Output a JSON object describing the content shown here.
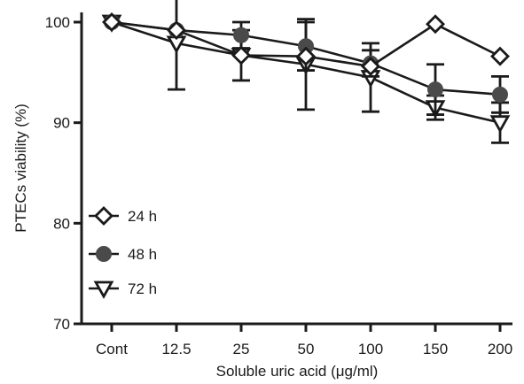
{
  "chart_data": {
    "type": "line",
    "categories": [
      "Cont",
      "12.5",
      "25",
      "50",
      "100",
      "150",
      "200"
    ],
    "xlabel": "Soluble uric acid (μg/ml)",
    "ylabel": "PTECs viability (%)",
    "ylim": [
      70,
      100
    ],
    "yticks": [
      70,
      80,
      90,
      100
    ],
    "grid": false,
    "legend_position": "bottom-left",
    "series": [
      {
        "name": "24 h",
        "marker": "diamond-open",
        "color": "#1a1a1a",
        "values": [
          100,
          99.2,
          96.7,
          96.6,
          95.6,
          99.8,
          96.6
        ],
        "err": [
          0,
          0,
          0,
          0,
          0,
          0,
          0
        ]
      },
      {
        "name": "48 h",
        "marker": "circle-filled",
        "color": "#4a4a4a",
        "values": [
          100,
          99.2,
          98.7,
          97.6,
          95.9,
          93.3,
          92.8
        ],
        "err": [
          0,
          0,
          1.3,
          2.4,
          1.3,
          2.5,
          1.8
        ]
      },
      {
        "name": "72 h",
        "marker": "triangle-down-open",
        "color": "#1a1a1a",
        "values": [
          100,
          97.9,
          96.7,
          95.8,
          94.5,
          91.5,
          90.0
        ],
        "err": [
          0,
          4.6,
          2.5,
          4.5,
          3.4,
          1.2,
          2.0
        ]
      }
    ]
  }
}
